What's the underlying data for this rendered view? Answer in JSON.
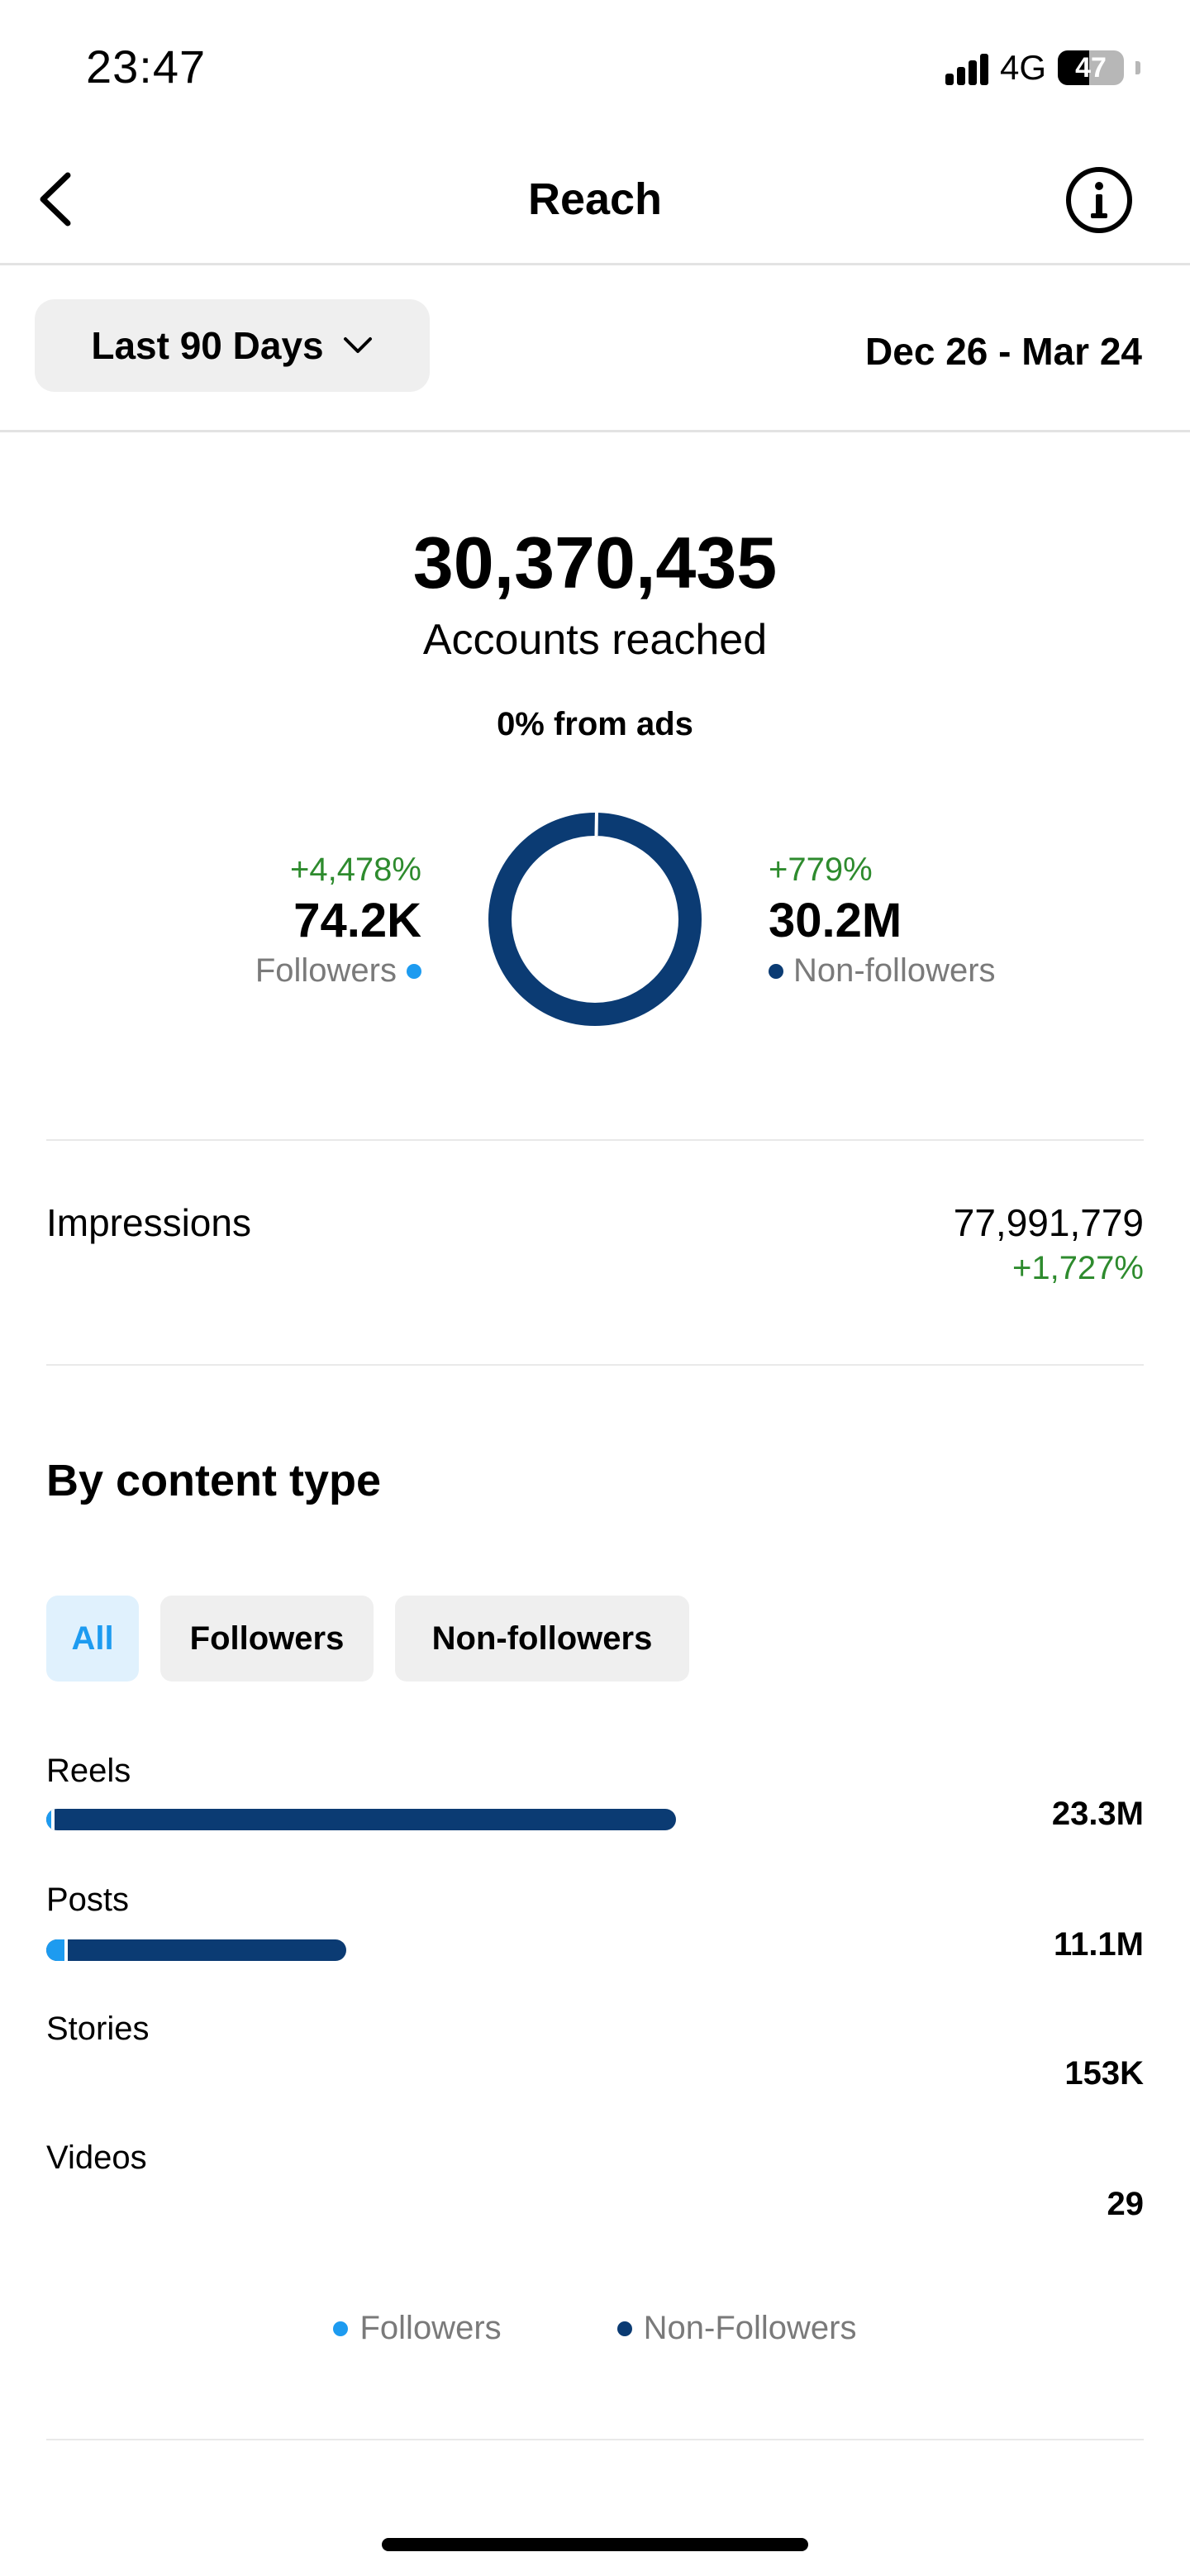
{
  "status_bar": {
    "time": "23:47",
    "network": "4G",
    "battery": "47"
  },
  "header": {
    "title": "Reach",
    "back_icon": "chevron-left-icon",
    "info_icon": "info-icon"
  },
  "filter": {
    "range_label": "Last 90 Days",
    "date_range": "Dec 26 - Mar 24"
  },
  "summary": {
    "total": "30,370,435",
    "total_label": "Accounts reached",
    "ads_label": "0% from ads",
    "followers": {
      "change": "+4,478%",
      "value": "74.2K",
      "label": "Followers",
      "share": 0.0024
    },
    "non_followers": {
      "change": "+779%",
      "value": "30.2M",
      "label": "Non-followers",
      "share": 0.9976
    }
  },
  "impressions": {
    "label": "Impressions",
    "value": "77,991,779",
    "change": "+1,727%"
  },
  "content_type": {
    "title": "By content type",
    "tabs": [
      "All",
      "Followers",
      "Non-followers"
    ],
    "active_tab": "All",
    "rows": [
      {
        "label": "Reels",
        "value": "23.3M",
        "raw": 23300000,
        "follower_share": 0.008
      },
      {
        "label": "Posts",
        "value": "11.1M",
        "raw": 11100000,
        "follower_share": 0.06
      },
      {
        "label": "Stories",
        "value": "153K",
        "raw": 153000,
        "follower_share": 0.0
      },
      {
        "label": "Videos",
        "value": "29",
        "raw": 29,
        "follower_share": 0.0
      }
    ],
    "legend": {
      "followers": "Followers",
      "non_followers": "Non-Followers"
    }
  },
  "colors": {
    "followers": "#1d9bf0",
    "non_followers": "#0b3b73",
    "positive": "#2e8b2e"
  }
}
